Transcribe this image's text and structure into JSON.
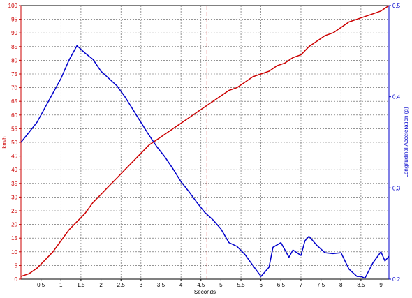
{
  "chart_data": {
    "type": "line",
    "title": "",
    "xlabel": "Seconds",
    "ylabel_left": "km/h",
    "ylabel_right": "Longitudinal Acceleration (g)",
    "xlim": [
      0,
      9.2
    ],
    "ylim_left": [
      0,
      100
    ],
    "ylim_right": [
      0.2,
      0.5
    ],
    "grid": true,
    "colors": {
      "speed": "#cc0000",
      "acceleration": "#0000cc",
      "marker": "#cc0000",
      "grid": "#555555",
      "axis_right": "#0000cc"
    },
    "x_ticks": [
      0.5,
      1,
      1.5,
      2,
      2.5,
      3,
      3.5,
      4,
      4.5,
      5,
      5.5,
      6,
      6.5,
      7,
      7.5,
      8,
      8.5,
      9
    ],
    "x_tick_labels": [
      "0.5",
      "1",
      "1.5",
      "2",
      "2.5",
      "3",
      "3.5",
      "4",
      "4.5",
      "5",
      "5.5",
      "6",
      "6.5",
      "7",
      "7.5",
      "8",
      "8.5",
      "9"
    ],
    "y_left_ticks": [
      0,
      5,
      10,
      15,
      20,
      25,
      30,
      35,
      40,
      45,
      50,
      55,
      60,
      65,
      70,
      75,
      80,
      85,
      90,
      95,
      100
    ],
    "y_left_tick_labels": [
      "0",
      "5",
      "10",
      "15",
      "20",
      "25",
      "30",
      "35",
      "40",
      "45",
      "50",
      "55",
      "60",
      "65",
      "70",
      "75",
      "80",
      "85",
      "90",
      "95",
      "100"
    ],
    "y_right_ticks": [
      0.2,
      0.3,
      0.4,
      0.5
    ],
    "y_right_tick_labels": [
      "0.2",
      "0.3",
      "0.4",
      "0.5"
    ],
    "marker_x": 4.65,
    "series": [
      {
        "axis": "left",
        "points": [
          [
            0,
            1
          ],
          [
            0.2,
            2
          ],
          [
            0.4,
            4
          ],
          [
            0.6,
            7
          ],
          [
            0.8,
            10
          ],
          [
            1,
            14
          ],
          [
            1.2,
            18
          ],
          [
            1.4,
            21
          ],
          [
            1.6,
            24
          ],
          [
            1.8,
            28
          ],
          [
            2,
            31
          ],
          [
            2.2,
            34
          ],
          [
            2.4,
            37
          ],
          [
            2.6,
            40
          ],
          [
            2.8,
            43
          ],
          [
            3,
            46
          ],
          [
            3.2,
            49
          ],
          [
            3.4,
            51
          ],
          [
            3.6,
            53
          ],
          [
            3.8,
            55
          ],
          [
            4,
            57
          ],
          [
            4.2,
            59
          ],
          [
            4.4,
            61
          ],
          [
            4.6,
            63
          ],
          [
            4.8,
            65
          ],
          [
            5,
            67
          ],
          [
            5.2,
            69
          ],
          [
            5.4,
            70
          ],
          [
            5.6,
            72
          ],
          [
            5.8,
            74
          ],
          [
            6,
            75
          ],
          [
            6.2,
            76
          ],
          [
            6.4,
            78
          ],
          [
            6.6,
            79
          ],
          [
            6.8,
            81
          ],
          [
            7,
            82
          ],
          [
            7.2,
            85
          ],
          [
            7.4,
            87
          ],
          [
            7.6,
            89
          ],
          [
            7.8,
            90
          ],
          [
            8,
            92
          ],
          [
            8.2,
            94
          ],
          [
            8.4,
            95
          ],
          [
            8.6,
            96
          ],
          [
            8.8,
            97
          ],
          [
            9,
            98
          ],
          [
            9.2,
            100
          ]
        ]
      },
      {
        "axis": "right",
        "points": [
          [
            0,
            0.35
          ],
          [
            0.2,
            0.361
          ],
          [
            0.4,
            0.372
          ],
          [
            0.6,
            0.388
          ],
          [
            0.8,
            0.404
          ],
          [
            1,
            0.42
          ],
          [
            1.2,
            0.44
          ],
          [
            1.4,
            0.456
          ],
          [
            1.6,
            0.448
          ],
          [
            1.8,
            0.441
          ],
          [
            2,
            0.428
          ],
          [
            2.2,
            0.42
          ],
          [
            2.4,
            0.412
          ],
          [
            2.6,
            0.4
          ],
          [
            2.8,
            0.386
          ],
          [
            3,
            0.372
          ],
          [
            3.2,
            0.358
          ],
          [
            3.4,
            0.345
          ],
          [
            3.6,
            0.334
          ],
          [
            3.8,
            0.321
          ],
          [
            4,
            0.307
          ],
          [
            4.2,
            0.296
          ],
          [
            4.4,
            0.284
          ],
          [
            4.6,
            0.273
          ],
          [
            4.8,
            0.265
          ],
          [
            5,
            0.255
          ],
          [
            5.2,
            0.24
          ],
          [
            5.4,
            0.236
          ],
          [
            5.6,
            0.227
          ],
          [
            5.8,
            0.215
          ],
          [
            6,
            0.203
          ],
          [
            6.2,
            0.213
          ],
          [
            6.3,
            0.235
          ],
          [
            6.5,
            0.24
          ],
          [
            6.6,
            0.232
          ],
          [
            6.7,
            0.224
          ],
          [
            6.8,
            0.232
          ],
          [
            7,
            0.226
          ],
          [
            7.1,
            0.242
          ],
          [
            7.2,
            0.247
          ],
          [
            7.4,
            0.237
          ],
          [
            7.6,
            0.229
          ],
          [
            7.8,
            0.228
          ],
          [
            8,
            0.229
          ],
          [
            8.2,
            0.211
          ],
          [
            8.4,
            0.203
          ],
          [
            8.5,
            0.203
          ],
          [
            8.6,
            0.201
          ],
          [
            8.8,
            0.218
          ],
          [
            9,
            0.23
          ],
          [
            9.1,
            0.22
          ],
          [
            9.2,
            0.225
          ]
        ]
      }
    ]
  }
}
